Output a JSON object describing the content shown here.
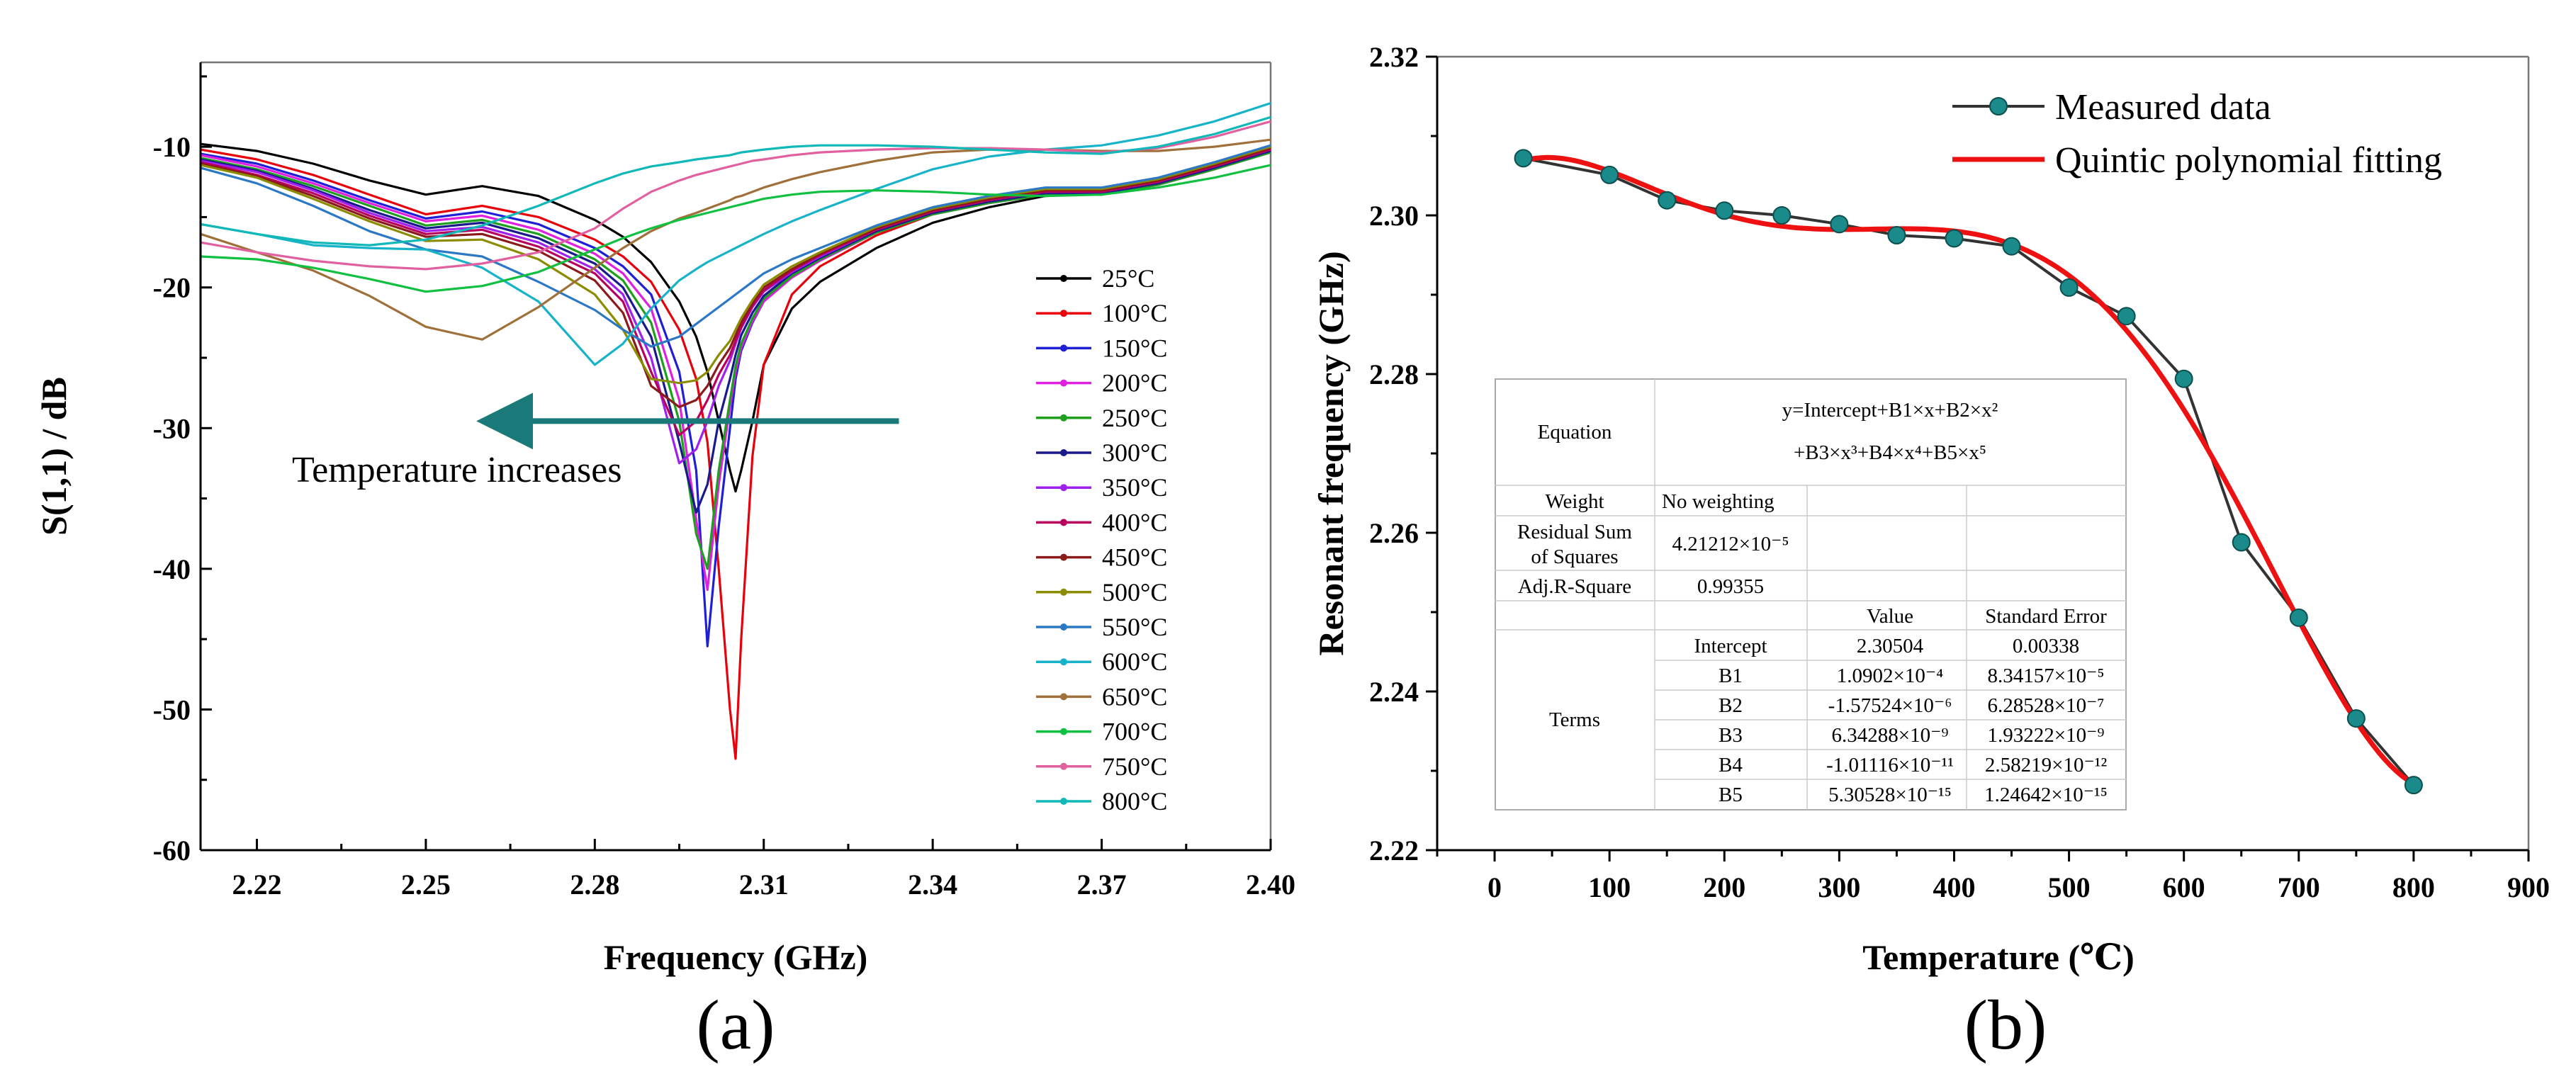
{
  "chart_data": [
    {
      "type": "line",
      "panel_label": "(a)",
      "xlabel": "Frequency (GHz)",
      "ylabel": "S(1,1) / dB",
      "xlim": [
        2.21,
        2.4
      ],
      "ylim": [
        -60,
        -4
      ],
      "x_ticks": [
        2.22,
        2.25,
        2.28,
        2.31,
        2.34,
        2.37,
        2.4
      ],
      "x_tick_labels": [
        "2.22",
        "2.25",
        "2.28",
        "2.31",
        "2.34",
        "2.37",
        "2.40"
      ],
      "y_ticks": [
        -60,
        -50,
        -40,
        -30,
        -20,
        -10
      ],
      "y_tick_labels": [
        "-60",
        "-50",
        "-40",
        "-30",
        "-20",
        "-10"
      ],
      "grid": false,
      "legend_position": "right",
      "annotation": {
        "text": "Temperature increases",
        "arrow": {
          "from": [
            2.334,
            -29.5
          ],
          "to": [
            2.265,
            -29.5
          ],
          "color": "#1a7a7a"
        }
      },
      "x": [
        2.21,
        2.22,
        2.23,
        2.24,
        2.25,
        2.26,
        2.27,
        2.28,
        2.285,
        2.29,
        2.295,
        2.298,
        2.3,
        2.302,
        2.304,
        2.305,
        2.306,
        2.308,
        2.31,
        2.315,
        2.32,
        2.33,
        2.34,
        2.35,
        2.36,
        2.37,
        2.38,
        2.39,
        2.4
      ],
      "series": [
        {
          "name": "25°C",
          "color": "#000000",
          "values": [
            -9.8,
            -10.3,
            -11.2,
            -12.4,
            -13.4,
            -12.8,
            -13.5,
            -15.2,
            -16.4,
            -18.2,
            -21,
            -23.5,
            -26,
            -29.5,
            -33,
            -34.5,
            -33,
            -29.5,
            -25.5,
            -21.5,
            -19.6,
            -17.2,
            -15.4,
            -14.3,
            -13.5,
            -13.3,
            -12.6,
            -11.3,
            -10
          ]
        },
        {
          "name": "100°C",
          "color": "#e8000b",
          "values": [
            -10.2,
            -10.9,
            -12,
            -13.4,
            -14.8,
            -14.2,
            -15,
            -16.6,
            -17.8,
            -19.6,
            -23,
            -26.5,
            -31,
            -40,
            -50,
            -53.5,
            -45,
            -32,
            -25.5,
            -20.5,
            -18.5,
            -16.3,
            -14.8,
            -14,
            -13.4,
            -13.4,
            -12.7,
            -11.6,
            -10.2
          ]
        },
        {
          "name": "150°C",
          "color": "#1f1fd6",
          "values": [
            -10.5,
            -11.2,
            -12.4,
            -13.8,
            -15.1,
            -14.6,
            -15.5,
            -17.2,
            -18.5,
            -20.5,
            -26,
            -33,
            -45.5,
            -37,
            -30,
            -26.5,
            -24.5,
            -22.5,
            -21,
            -19.2,
            -18,
            -16,
            -14.7,
            -13.9,
            -13.3,
            -13.3,
            -12.6,
            -11.5,
            -10.3
          ]
        },
        {
          "name": "200°C",
          "color": "#e020e0",
          "values": [
            -10.6,
            -11.4,
            -12.6,
            -14,
            -15.3,
            -14.9,
            -15.9,
            -17.6,
            -19,
            -21.5,
            -28,
            -36.5,
            -41.5,
            -34,
            -28.5,
            -26,
            -24.3,
            -22.4,
            -21,
            -19.3,
            -18.1,
            -16.1,
            -14.8,
            -14,
            -13.4,
            -13.4,
            -12.7,
            -11.6,
            -10.4
          ]
        },
        {
          "name": "250°C",
          "color": "#1ea01e",
          "values": [
            -10.8,
            -11.6,
            -12.8,
            -14.2,
            -15.6,
            -15.2,
            -16.2,
            -18,
            -19.5,
            -22.5,
            -29.5,
            -37.5,
            -40,
            -33,
            -28,
            -25.6,
            -24,
            -22.2,
            -20.8,
            -19.2,
            -18,
            -16.1,
            -14.8,
            -14,
            -13.4,
            -13.4,
            -12.7,
            -11.6,
            -10.4
          ]
        },
        {
          "name": "300°C",
          "color": "#1a1a8c",
          "values": [
            -10.9,
            -11.7,
            -13,
            -14.5,
            -15.8,
            -15.4,
            -16.5,
            -18.3,
            -20,
            -23.5,
            -31,
            -36,
            -34,
            -29.5,
            -26.5,
            -24.8,
            -23.4,
            -21.8,
            -20.6,
            -19,
            -17.9,
            -16,
            -14.7,
            -13.9,
            -13.3,
            -13.3,
            -12.6,
            -11.5,
            -10.3
          ]
        },
        {
          "name": "350°C",
          "color": "#a020f0",
          "values": [
            -11,
            -11.8,
            -13.1,
            -14.7,
            -16,
            -15.7,
            -16.8,
            -18.7,
            -20.5,
            -25,
            -32.5,
            -31.5,
            -29.5,
            -27,
            -25.2,
            -24,
            -22.9,
            -21.4,
            -20.3,
            -18.9,
            -17.8,
            -15.9,
            -14.6,
            -13.8,
            -13.2,
            -13.2,
            -12.5,
            -11.4,
            -10.2
          ]
        },
        {
          "name": "400°C",
          "color": "#b8005c",
          "values": [
            -11.1,
            -12,
            -13.3,
            -14.9,
            -16.2,
            -15.9,
            -17.1,
            -19,
            -21,
            -26,
            -30.5,
            -29.5,
            -28,
            -26.2,
            -24.8,
            -23.8,
            -22.8,
            -21.3,
            -20.2,
            -18.8,
            -17.7,
            -15.9,
            -14.6,
            -13.8,
            -13.2,
            -13.2,
            -12.5,
            -11.4,
            -10.2
          ]
        },
        {
          "name": "450°C",
          "color": "#8b1a1a",
          "values": [
            -11.2,
            -12.1,
            -13.5,
            -15.1,
            -16.4,
            -16.2,
            -17.4,
            -19.5,
            -21.8,
            -27,
            -28.5,
            -28,
            -27,
            -25.5,
            -24.3,
            -23.4,
            -22.5,
            -21.1,
            -20,
            -18.7,
            -17.6,
            -15.8,
            -14.5,
            -13.7,
            -13.1,
            -13.1,
            -12.4,
            -11.3,
            -10.1
          ]
        },
        {
          "name": "500°C",
          "color": "#8c8c00",
          "values": [
            -11.3,
            -12.2,
            -13.7,
            -15.3,
            -16.7,
            -16.6,
            -18,
            -20.5,
            -23,
            -26.5,
            -26.8,
            -26.6,
            -26,
            -24.8,
            -23.8,
            -23,
            -22.2,
            -20.9,
            -19.8,
            -18.5,
            -17.5,
            -15.7,
            -14.4,
            -13.6,
            -13,
            -13,
            -12.3,
            -11.2,
            -10
          ]
        },
        {
          "name": "550°C",
          "color": "#2b78c4",
          "values": [
            -11.5,
            -12.6,
            -14.2,
            -16,
            -17.3,
            -17.8,
            -19.6,
            -21.6,
            -23,
            -24.2,
            -23.5,
            -22.6,
            -22,
            -21.4,
            -20.8,
            -20.5,
            -20.2,
            -19.6,
            -19,
            -18,
            -17.2,
            -15.6,
            -14.3,
            -13.5,
            -12.9,
            -12.9,
            -12.2,
            -11.1,
            -9.9
          ]
        },
        {
          "name": "600°C",
          "color": "#17b3c9",
          "values": [
            -15.5,
            -16.2,
            -17,
            -17.2,
            -17.3,
            -18.6,
            -21,
            -25.5,
            -24,
            -21.5,
            -19.5,
            -18.7,
            -18.2,
            -17.8,
            -17.4,
            -17.2,
            -17,
            -16.6,
            -16.2,
            -15.3,
            -14.5,
            -13,
            -11.6,
            -10.7,
            -10.2,
            -9.9,
            -9.2,
            -8.2,
            -6.9
          ]
        },
        {
          "name": "650°C",
          "color": "#a0703a",
          "values": [
            -16.2,
            -17.5,
            -18.8,
            -20.6,
            -22.8,
            -23.7,
            -21.4,
            -18.6,
            -17.2,
            -16,
            -15.1,
            -14.7,
            -14.4,
            -14.1,
            -13.8,
            -13.6,
            -13.5,
            -13.2,
            -12.9,
            -12.3,
            -11.8,
            -11,
            -10.4,
            -10.2,
            -10.2,
            -10.3,
            -10.3,
            -10,
            -9.5
          ]
        },
        {
          "name": "700°C",
          "color": "#10c040",
          "values": [
            -17.8,
            -18,
            -18.6,
            -19.4,
            -20.3,
            -19.9,
            -18.9,
            -17.3,
            -16.5,
            -15.8,
            -15.2,
            -14.9,
            -14.7,
            -14.5,
            -14.3,
            -14.2,
            -14.1,
            -13.9,
            -13.7,
            -13.4,
            -13.2,
            -13.1,
            -13.2,
            -13.4,
            -13.5,
            -13.4,
            -12.9,
            -12.2,
            -11.3
          ]
        },
        {
          "name": "750°C",
          "color": "#e060a0",
          "values": [
            -16.8,
            -17.5,
            -18.1,
            -18.5,
            -18.7,
            -18.3,
            -17.5,
            -15.8,
            -14.4,
            -13.2,
            -12.4,
            -12,
            -11.8,
            -11.6,
            -11.4,
            -11.3,
            -11.2,
            -11,
            -10.9,
            -10.6,
            -10.4,
            -10.2,
            -10.1,
            -10.1,
            -10.2,
            -10.4,
            -10.1,
            -9.3,
            -8.2
          ]
        },
        {
          "name": "800°C",
          "color": "#10b8b8",
          "values": [
            -15.5,
            -16.2,
            -16.8,
            -17,
            -16.6,
            -15.6,
            -14.2,
            -12.6,
            -11.9,
            -11.4,
            -11.1,
            -10.9,
            -10.8,
            -10.7,
            -10.6,
            -10.5,
            -10.4,
            -10.3,
            -10.2,
            -10,
            -9.9,
            -9.9,
            -10,
            -10.2,
            -10.4,
            -10.5,
            -10,
            -9.1,
            -7.9
          ]
        }
      ]
    },
    {
      "type": "line",
      "panel_label": "(b)",
      "xlabel": "Temperature (℃)",
      "ylabel": "Resonant frequency (GHz)",
      "xlim": [
        -50,
        900
      ],
      "ylim": [
        2.22,
        2.32
      ],
      "x_ticks": [
        0,
        100,
        200,
        300,
        400,
        500,
        600,
        700,
        800,
        900
      ],
      "x_tick_labels": [
        "0",
        "100",
        "200",
        "300",
        "400",
        "500",
        "600",
        "700",
        "800",
        "900"
      ],
      "y_ticks": [
        2.22,
        2.24,
        2.26,
        2.28,
        2.3,
        2.32
      ],
      "y_tick_labels": [
        "2.22",
        "2.24",
        "2.26",
        "2.28",
        "2.30",
        "2.32"
      ],
      "grid": false,
      "legend_position": "top-right",
      "series": [
        {
          "name": "Measured data",
          "color": "#333333",
          "marker_color": "#1a8a8a",
          "x": [
            25,
            100,
            150,
            200,
            250,
            300,
            350,
            400,
            450,
            500,
            550,
            600,
            650,
            700,
            750,
            800
          ],
          "values": [
            2.3072,
            2.3051,
            2.3019,
            2.3006,
            2.3,
            2.2989,
            2.2975,
            2.2971,
            2.2961,
            2.2909,
            2.2873,
            2.2794,
            2.2588,
            2.2493,
            2.2366,
            2.2282
          ]
        },
        {
          "name": "Quintic polynomial fitting",
          "color": "#ee1111",
          "coefficients": {
            "Intercept": 2.30504,
            "B1": 0.00010902,
            "B2": -1.57524e-06,
            "B3": 6.34288e-09,
            "B4": -1.01116e-11,
            "B5": 5.30528e-15
          },
          "x_range": [
            25,
            800
          ]
        }
      ],
      "fit_table": {
        "equation_label": "Equation",
        "equation_line1": "y=Intercept+B1×x+B2×x²",
        "equation_line2": "+B3×x³+B4×x⁴+B5×x⁵",
        "weight_label": "Weight",
        "weight_value": "No weighting",
        "rss_label_1": "Residual Sum",
        "rss_label_2": "of Squares",
        "rss_value": "4.21212×10⁻⁵",
        "adjr_label": "Adj.R-Square",
        "adjr_value": "0.99355",
        "value_header": "Value",
        "stderr_header": "Standard Error",
        "terms_label": "Terms",
        "rows": [
          {
            "term": "Intercept",
            "value": "2.30504",
            "error": "0.00338"
          },
          {
            "term": "B1",
            "value": "1.0902×10⁻⁴",
            "error": "8.34157×10⁻⁵"
          },
          {
            "term": "B2",
            "value": "-1.57524×10⁻⁶",
            "error": "6.28528×10⁻⁷"
          },
          {
            "term": "B3",
            "value": "6.34288×10⁻⁹",
            "error": "1.93222×10⁻⁹"
          },
          {
            "term": "B4",
            "value": "-1.01116×10⁻¹¹",
            "error": "2.58219×10⁻¹²"
          },
          {
            "term": "B5",
            "value": "5.30528×10⁻¹⁵",
            "error": "1.24642×10⁻¹⁵"
          }
        ]
      }
    }
  ]
}
